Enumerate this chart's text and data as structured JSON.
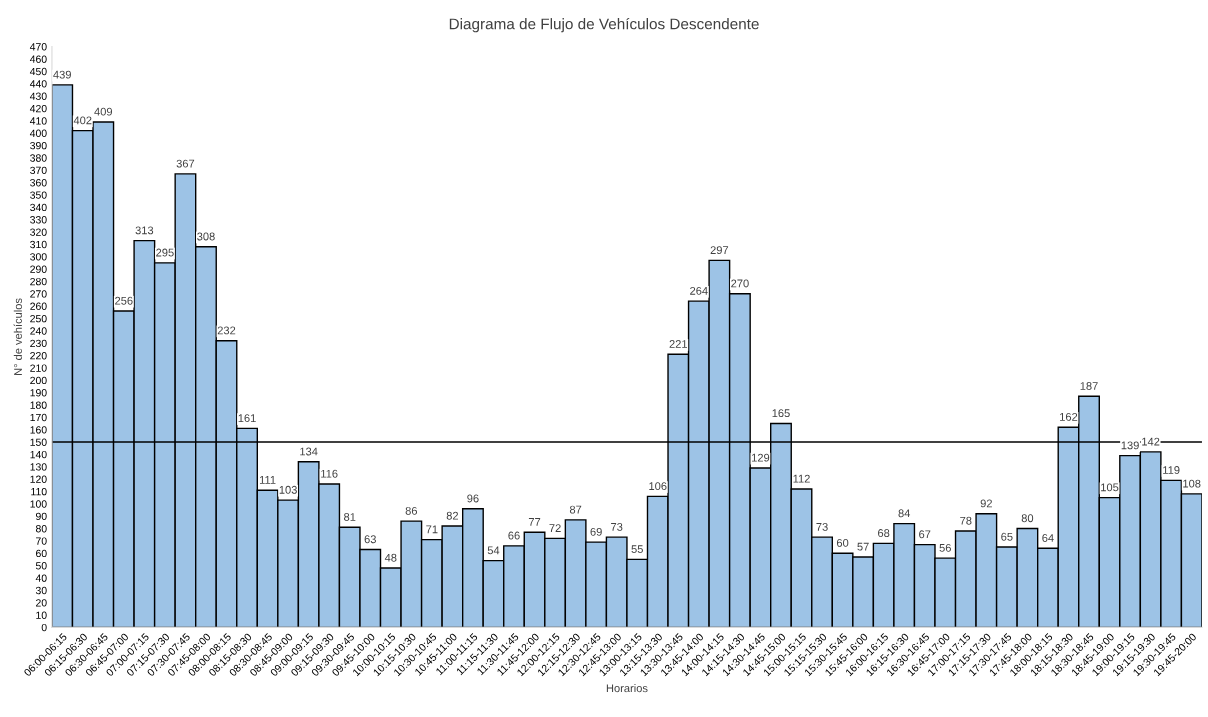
{
  "chart_data": {
    "type": "bar",
    "title": "Diagrama de Flujo de Vehículos Descendente",
    "xlabel": "Horarios",
    "ylabel": "N° de vehículos",
    "categories": [
      "06:00-06:15",
      "06:15-06:30",
      "06:30-06:45",
      "06:45-07:00",
      "07:00-07:15",
      "07:15-07:30",
      "07:30-07:45",
      "07:45-08:00",
      "08:00-08:15",
      "08:15-08:30",
      "08:30-08:45",
      "08:45-09:00",
      "09:00-09:15",
      "09:15-09:30",
      "09:30-09:45",
      "09:45-10:00",
      "10:00-10:15",
      "10:15-10:30",
      "10:30-10:45",
      "10:45-11:00",
      "11:00-11:15",
      "11:15-11:30",
      "11:30-11:45",
      "11:45-12:00",
      "12:00-12:15",
      "12:15-12:30",
      "12:30-12:45",
      "12:45-13:00",
      "13:00-13:15",
      "13:15-13:30",
      "13:30-13:45",
      "13:45-14:00",
      "14:00-14:15",
      "14:15-14:30",
      "14:30-14:45",
      "14:45-15:00",
      "15:00-15:15",
      "15:15-15:30",
      "15:30-15:45",
      "15:45-16:00",
      "16:00-16:15",
      "16:15-16:30",
      "16:30-16:45",
      "16:45-17:00",
      "17:00-17:15",
      "17:15-17:30",
      "17:30-17:45",
      "17:45-18:00",
      "18:00-18:15",
      "18:15-18:30",
      "18:30-18:45",
      "18:45-19:00",
      "19:00-19:15",
      "19:15-19:30",
      "19:30-19:45",
      "19:45-20:00"
    ],
    "values": [
      439,
      402,
      409,
      256,
      313,
      295,
      367,
      308,
      232,
      161,
      111,
      103,
      134,
      116,
      81,
      63,
      48,
      86,
      71,
      82,
      96,
      54,
      66,
      77,
      72,
      87,
      69,
      73,
      55,
      106,
      221,
      264,
      297,
      270,
      129,
      165,
      112,
      73,
      60,
      57,
      68,
      84,
      67,
      56,
      78,
      92,
      65,
      80,
      64,
      162,
      187,
      105,
      139,
      142,
      119,
      108
    ],
    "color": "#9dc3e6",
    "data_labels": true,
    "grid": false,
    "legend": false,
    "ylim": [
      0,
      470
    ],
    "yticks": [
      0,
      10,
      20,
      30,
      40,
      50,
      60,
      70,
      80,
      90,
      100,
      110,
      120,
      130,
      140,
      150,
      160,
      170,
      180,
      190,
      200,
      210,
      220,
      230,
      240,
      250,
      260,
      270,
      280,
      290,
      300,
      310,
      320,
      330,
      340,
      350,
      360,
      370,
      380,
      390,
      400,
      410,
      420,
      430,
      440,
      450,
      460,
      470
    ],
    "ref_lines": [
      {
        "axis": "y",
        "value": 150,
        "color": "#000000",
        "line_style": "solid"
      }
    ]
  }
}
